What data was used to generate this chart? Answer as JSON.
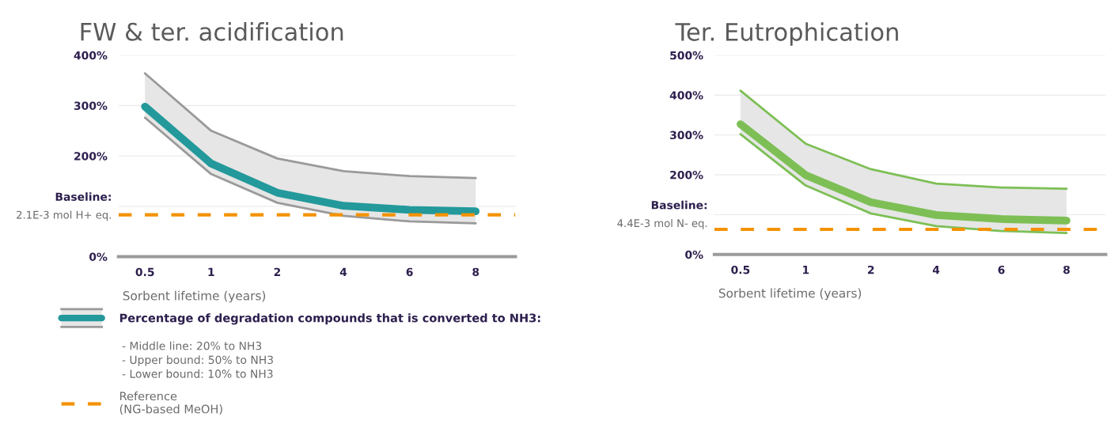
{
  "chart_data": [
    {
      "type": "line",
      "title": "FW & ter. acidification",
      "xlabel": "Sorbent lifetime (years)",
      "categories": [
        "0.5",
        "1",
        "2",
        "4",
        "6",
        "8"
      ],
      "ylim": [
        0,
        400
      ],
      "yticks": [
        {
          "value": 0,
          "label": "0%"
        },
        {
          "value": 100,
          "label": null
        },
        {
          "value": 200,
          "label": "200%"
        },
        {
          "value": 300,
          "label": "300%"
        },
        {
          "value": 400,
          "label": "400%"
        }
      ],
      "grid": "y",
      "legend": "bottom",
      "series": [
        {
          "color": "#9a9a9a",
          "values": [
            364,
            250,
            195,
            170,
            160,
            156
          ]
        },
        {
          "color": "#9a9a9a",
          "values": [
            276,
            164,
            107,
            81,
            70,
            66
          ]
        },
        {
          "name": "Percentage of degradation compounds that is converted to NH3:",
          "color": "#23999b",
          "values": [
            298,
            185,
            127,
            101,
            93,
            90
          ],
          "lower": [
            276,
            164,
            107,
            81,
            70,
            66
          ],
          "upper": [
            364,
            250,
            195,
            170,
            160,
            156
          ]
        }
      ],
      "ref_lines": [
        {
          "axis": "y",
          "value": 83,
          "label": "Reference\n(NG-based MeOH)",
          "color": "#f39200",
          "line_style": "dashed"
        }
      ],
      "annotations": [
        "Baseline:",
        "2.1E-3 mol H+ eq.",
        "- Middle line: 20% to NH3\n- Upper bound: 50% to NH3\n- Lower bound: 10% to NH3"
      ]
    },
    {
      "type": "line",
      "title": "Ter. Eutrophication",
      "xlabel": "Sorbent lifetime (years)",
      "categories": [
        "0.5",
        "1",
        "2",
        "4",
        "6",
        "8"
      ],
      "ylim": [
        0,
        500
      ],
      "yticks": [
        {
          "value": 0,
          "label": "0%"
        },
        {
          "value": 100,
          "label": null
        },
        {
          "value": 200,
          "label": "200%"
        },
        {
          "value": 300,
          "label": "300%"
        },
        {
          "value": 400,
          "label": "400%"
        },
        {
          "value": 500,
          "label": "500%"
        }
      ],
      "grid": "y",
      "series": [
        {
          "color": "#7dbf55",
          "values": [
            411,
            278,
            214,
            178,
            168,
            165
          ]
        },
        {
          "color": "#7dbf55",
          "values": [
            302,
            173,
            103,
            71,
            59,
            54
          ]
        },
        {
          "color": "#7dbf55",
          "values": [
            327,
            199,
            131,
            99,
            89,
            85
          ],
          "lower": [
            302,
            173,
            103,
            71,
            59,
            54
          ],
          "upper": [
            411,
            278,
            214,
            178,
            168,
            165
          ]
        }
      ],
      "ref_lines": [
        {
          "axis": "y",
          "value": 63,
          "color": "#f39200",
          "line_style": "dashed"
        }
      ],
      "annotations": [
        "Baseline:",
        "4.4E-3 mol N- eq."
      ]
    }
  ]
}
